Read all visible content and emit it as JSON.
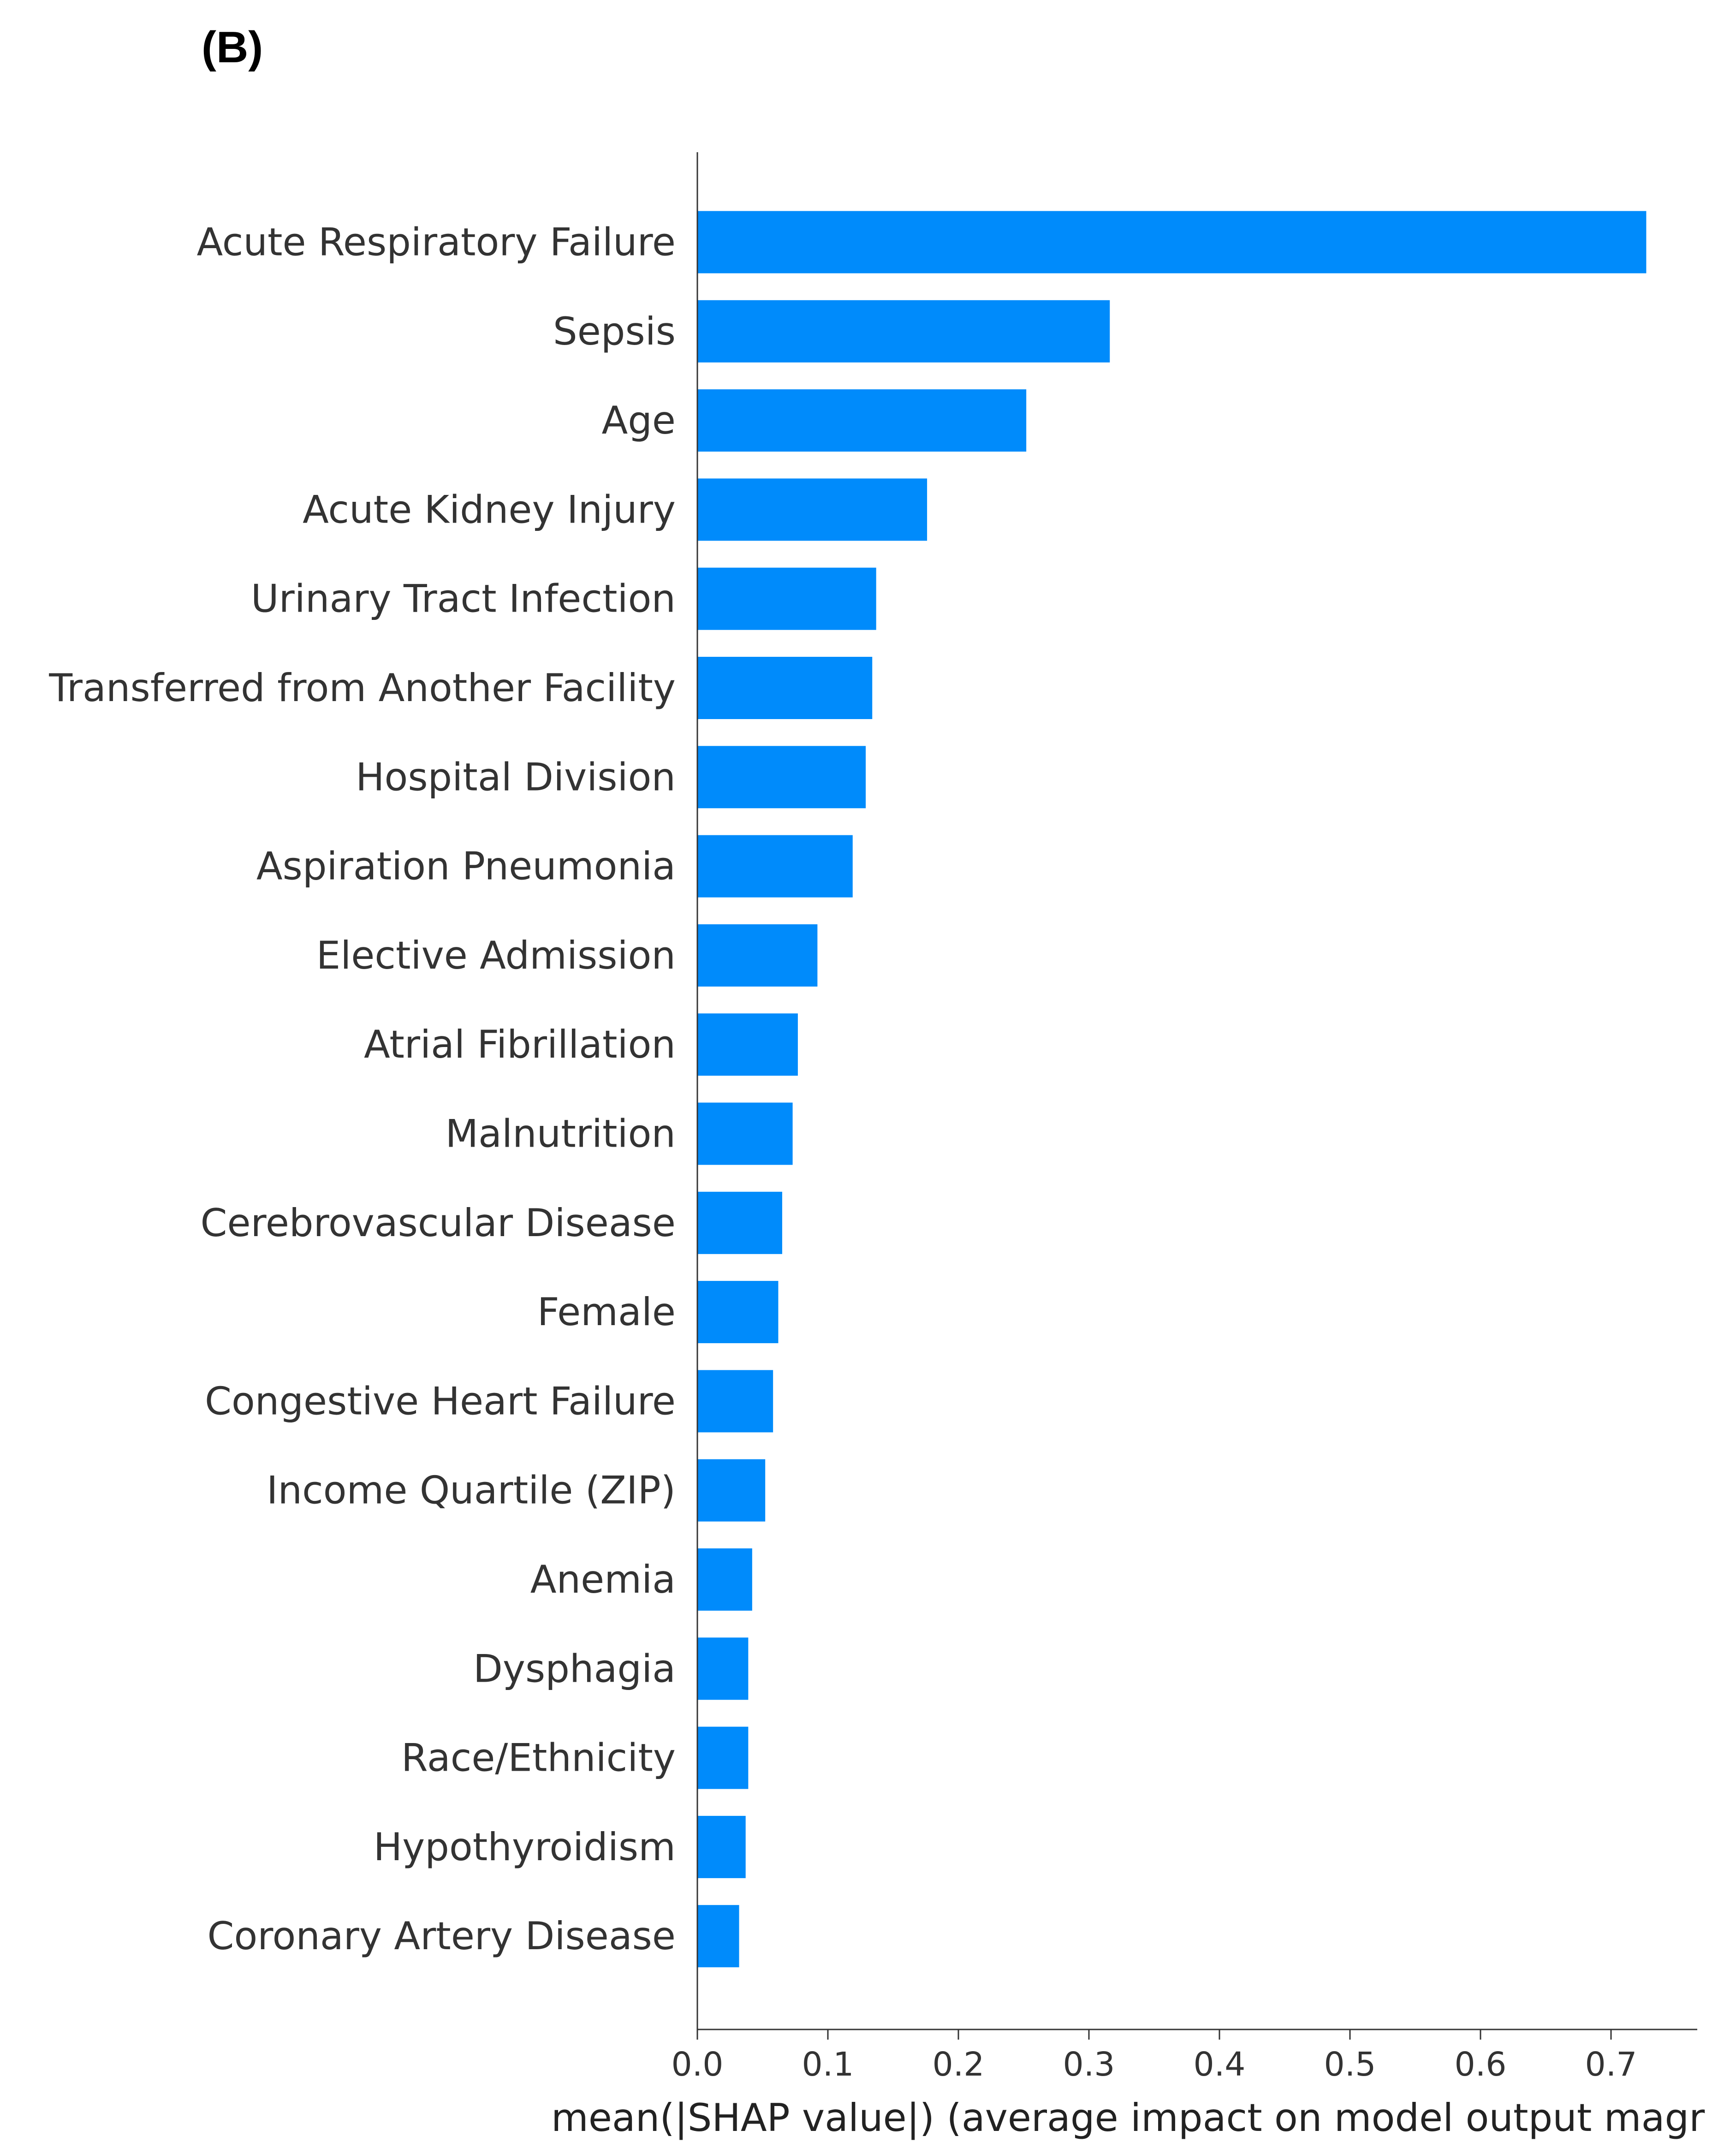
{
  "panel_label": "(B)",
  "chart_data": {
    "type": "bar",
    "orientation": "horizontal",
    "categories": [
      "Acute Respiratory Failure",
      "Sepsis",
      "Age",
      "Acute Kidney Injury",
      "Urinary Tract Infection",
      "Transferred from Another Facility",
      "Hospital Division",
      "Aspiration Pneumonia",
      "Elective Admission",
      "Atrial Fibrillation",
      "Malnutrition",
      "Cerebrovascular Disease",
      "Female",
      "Congestive Heart Failure",
      "Income Quartile (ZIP)",
      "Anemia",
      "Dysphagia",
      "Race/Ethnicity",
      "Hypothyroidism",
      "Coronary Artery Disease"
    ],
    "values": [
      0.727,
      0.316,
      0.252,
      0.176,
      0.137,
      0.134,
      0.129,
      0.119,
      0.092,
      0.077,
      0.073,
      0.065,
      0.062,
      0.058,
      0.052,
      0.042,
      0.039,
      0.039,
      0.037,
      0.032
    ],
    "xlabel": "mean(|SHAP value|) (average impact on model output magr",
    "ylabel": "",
    "xlim": [
      0.0,
      0.76
    ],
    "xticks": [
      "0.0",
      "0.1",
      "0.2",
      "0.3",
      "0.4",
      "0.5",
      "0.6",
      "0.7"
    ],
    "xtick_values": [
      0.0,
      0.1,
      0.2,
      0.3,
      0.4,
      0.5,
      0.6,
      0.7
    ],
    "bar_color": "#008bfb",
    "grid": false,
    "legend": "none"
  }
}
